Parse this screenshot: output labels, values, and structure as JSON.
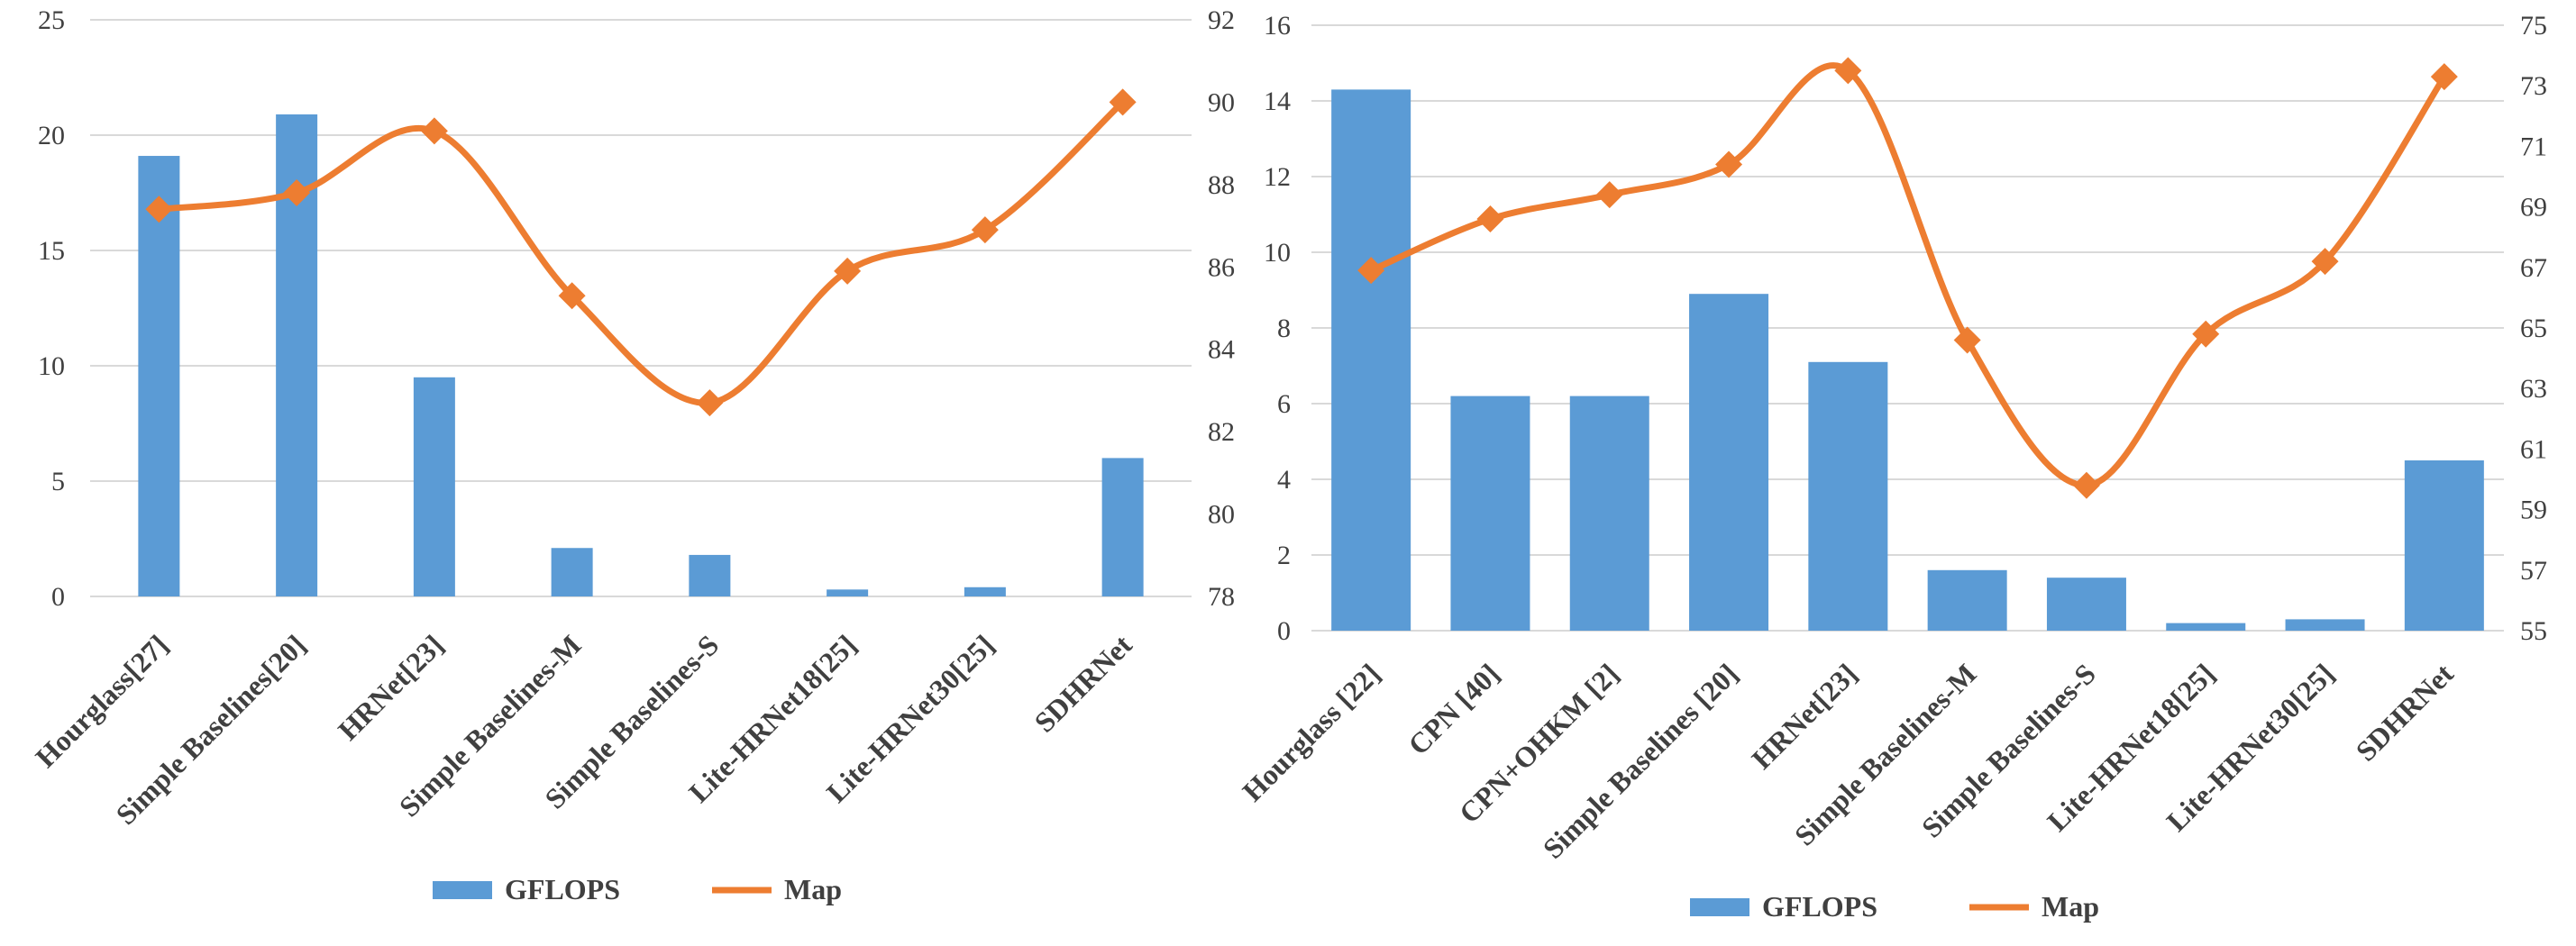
{
  "chart_data": [
    {
      "type": "bar",
      "categories": [
        "Hourglass[27]",
        "Simple Baselines[20]",
        "HRNet[23]",
        "Simple Baselines-M",
        "Simple Baselines-S",
        "Lite-HRNet18[25]",
        "Lite-HRNet30[25]",
        "SDHRNet"
      ],
      "series": [
        {
          "name": "GFLOPS",
          "type": "bar",
          "axis": "left",
          "values": [
            19.1,
            20.9,
            9.5,
            2.1,
            1.8,
            0.3,
            0.4,
            6.0
          ]
        },
        {
          "name": "Map",
          "type": "line",
          "axis": "right",
          "values": [
            87.4,
            87.8,
            89.3,
            85.3,
            82.7,
            85.9,
            86.9,
            90.0
          ]
        }
      ],
      "y_left": {
        "min": 0,
        "max": 25,
        "step": 5
      },
      "y_right": {
        "min": 78,
        "max": 92,
        "step": 2
      },
      "legend": [
        "GFLOPS",
        "Map"
      ],
      "grid": true,
      "colors": {
        "bar": "#5b9bd5",
        "line": "#ed7d31",
        "grid": "#d9d9d9",
        "text": "#404040"
      }
    },
    {
      "type": "bar",
      "categories": [
        "Hourglass [22]",
        "CPN [40]",
        "CPN+OHKM [2]",
        "Simple Baselines [20]",
        "HRNet[23]",
        "Simple Baselines-M",
        "Simple Baselines-S",
        "Lite-HRNet18[25]",
        "Lite-HRNet30[25]",
        "SDHRNet"
      ],
      "series": [
        {
          "name": "GFLOPS",
          "type": "bar",
          "axis": "left",
          "values": [
            14.3,
            6.2,
            6.2,
            8.9,
            7.1,
            1.6,
            1.4,
            0.2,
            0.3,
            4.5
          ]
        },
        {
          "name": "Map",
          "type": "line",
          "axis": "right",
          "values": [
            66.9,
            68.6,
            69.4,
            70.4,
            73.5,
            64.6,
            59.8,
            64.8,
            67.2,
            73.3
          ]
        }
      ],
      "y_left": {
        "min": 0,
        "max": 16,
        "step": 2
      },
      "y_right": {
        "min": 55,
        "max": 75,
        "step": 2
      },
      "legend": [
        "GFLOPS",
        "Map"
      ],
      "grid": true,
      "colors": {
        "bar": "#5b9bd5",
        "line": "#ed7d31",
        "grid": "#d9d9d9",
        "text": "#404040"
      }
    }
  ]
}
